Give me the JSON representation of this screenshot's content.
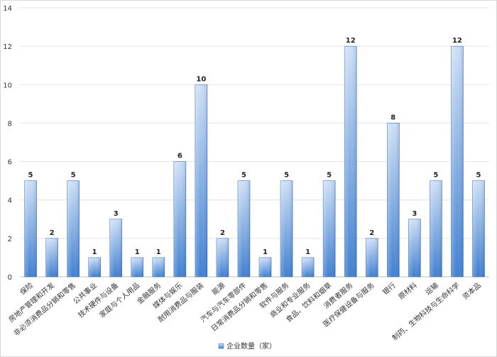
{
  "chart_data": {
    "type": "bar",
    "categories": [
      "保险",
      "房地产管理和开发",
      "非必须消费品分销和零售",
      "公共事业",
      "技术硬件与设备",
      "家庭与个人用品",
      "金融服务",
      "媒体与娱乐",
      "耐用消费品与服装",
      "能源",
      "汽车与汽车零部件",
      "日常消费品分销和零售",
      "软件与服务",
      "商业和专业服务",
      "食品、饮料和烟草",
      "消费者服务",
      "医疗保健设备与服务",
      "银行",
      "原材料",
      "运输",
      "制药、生物科技与生命科学",
      "资本品"
    ],
    "series": [
      {
        "name": "企业数量（家）",
        "values": [
          5,
          2,
          5,
          1,
          3,
          1,
          1,
          6,
          10,
          2,
          5,
          1,
          5,
          1,
          5,
          12,
          2,
          8,
          3,
          5,
          12,
          5
        ]
      }
    ],
    "ylim": [
      0,
      14
    ],
    "yticks": [
      "0",
      "2",
      "4",
      "6",
      "8",
      "10",
      "12",
      "14"
    ],
    "grid": true,
    "legend_position": "bottom",
    "colors": {
      "bar_light": "#cfe0f5",
      "bar_dark": "#3f7fd0",
      "bar_edge": "#3a73bd"
    }
  }
}
